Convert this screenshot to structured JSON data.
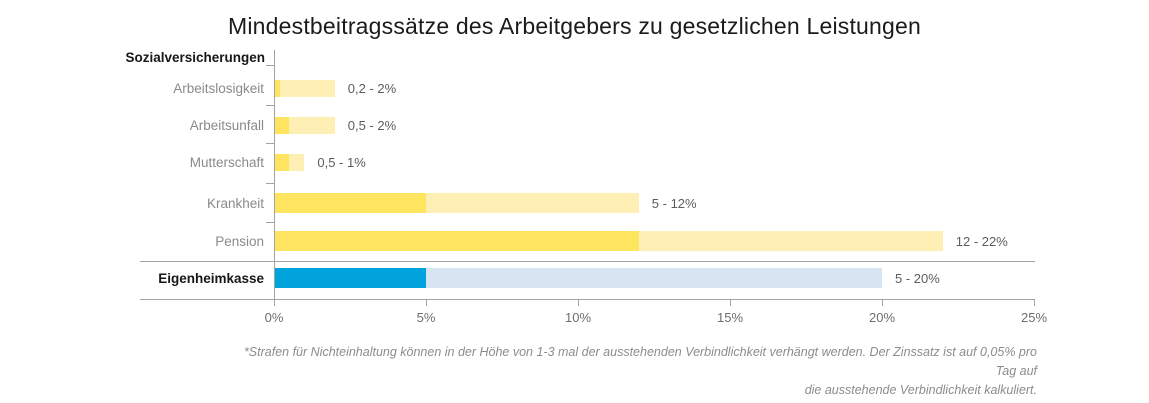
{
  "title": "Mindestbeitragssätze des Arbeitgebers zu gesetzlichen Leistungen",
  "group_header": "Sozialversicherungen",
  "colors": {
    "yellow_dark": "#FFE45F",
    "yellow_light": "#FEF0B4",
    "blue_dark": "#00A3DC",
    "blue_light": "#D7E4F1",
    "axis": "#a3a3a3"
  },
  "footnote": {
    "line1": "*Strafen für Nichteinhaltung können in der Höhe von 1-3 mal der ausstehenden Verbindlichkeit verhängt werden. Der Zinssatz ist auf 0,05% pro Tag auf",
    "line2": "die ausstehende Verbindlichkeit kalkuliert."
  },
  "chart_data": {
    "type": "bar",
    "orientation": "horizontal",
    "title": "Mindestbeitragssätze des Arbeitgebers zu gesetzlichen Leistungen",
    "xlabel": "",
    "x_unit": "percent",
    "xlim": [
      0,
      25
    ],
    "x_ticks": [
      "0%",
      "5%",
      "10%",
      "15%",
      "20%",
      "25%"
    ],
    "grid": false,
    "legend": "none",
    "rows": [
      {
        "label": "Arbeitslosigkeit",
        "group": "Sozialversicherungen",
        "min": 0.2,
        "max": 2,
        "value_label": "0,2 - 2%",
        "scheme": "yellow",
        "bold": false
      },
      {
        "label": "Arbeitsunfall",
        "group": "Sozialversicherungen",
        "min": 0.5,
        "max": 2,
        "value_label": "0,5 - 2%",
        "scheme": "yellow",
        "bold": false
      },
      {
        "label": "Mutterschaft",
        "group": "Sozialversicherungen",
        "min": 0.5,
        "max": 1,
        "value_label": "0,5 - 1%",
        "scheme": "yellow",
        "bold": false
      },
      {
        "label": "Krankheit",
        "group": "Sozialversicherungen",
        "min": 5,
        "max": 12,
        "value_label": "5 - 12%",
        "scheme": "yellow",
        "bold": false
      },
      {
        "label": "Pension",
        "group": "Sozialversicherungen",
        "min": 12,
        "max": 22,
        "value_label": "12 - 22%",
        "scheme": "yellow",
        "bold": false
      },
      {
        "label": "Eigenheimkasse",
        "group": "Eigenheimkasse",
        "min": 5,
        "max": 20,
        "value_label": "5 - 20%",
        "scheme": "blue",
        "bold": true
      }
    ]
  }
}
